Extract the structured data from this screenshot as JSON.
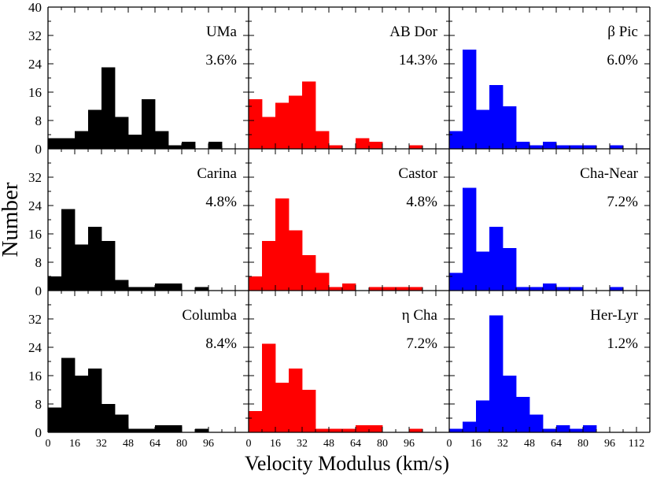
{
  "chart_data": {
    "type": "bar",
    "layout": "3x3 grid of histograms",
    "xlabel": "Velocity Modulus (km/s)",
    "ylabel": "Number",
    "bin_width": 8,
    "xlim": [
      0,
      120
    ],
    "ylim": [
      0,
      40
    ],
    "x_ticks": [
      0,
      16,
      32,
      48,
      64,
      80,
      96,
      112
    ],
    "x_tick_labels_first_col": [
      "0",
      "16",
      "32",
      "48",
      "64",
      "80",
      "96"
    ],
    "x_tick_labels_other_col": [
      "0",
      "16",
      "32",
      "48",
      "64",
      "80",
      "96"
    ],
    "x_tick_labels_last_col": [
      "0",
      "16",
      "32",
      "48",
      "64",
      "80",
      "96",
      "112"
    ],
    "y_tick_labels_top": [
      "0",
      "8",
      "16",
      "24",
      "32",
      "40"
    ],
    "y_tick_labels_other": [
      "0",
      "8",
      "16",
      "24",
      "32"
    ],
    "colors": {
      "black": "#000000",
      "red": "#ff0000",
      "blue": "#0000ff"
    },
    "panels": [
      {
        "name": "UMa",
        "percent": "3.6%",
        "color": "#000000",
        "values": [
          3,
          3,
          5,
          11,
          23,
          9,
          4,
          14,
          5,
          1,
          2,
          0,
          2,
          0,
          0
        ]
      },
      {
        "name": "AB Dor",
        "percent": "14.3%",
        "color": "#ff0000",
        "values": [
          14,
          9,
          13,
          15,
          19,
          5,
          1,
          0,
          3,
          2,
          0,
          0,
          1,
          0,
          0
        ]
      },
      {
        "name": "β Pic",
        "percent": "6.0%",
        "color": "#0000ff",
        "values": [
          5,
          28,
          11,
          18,
          12,
          2,
          1,
          2,
          1,
          1,
          1,
          0,
          1,
          0,
          0
        ]
      },
      {
        "name": "Carina",
        "percent": "4.8%",
        "color": "#000000",
        "values": [
          4,
          23,
          13,
          18,
          14,
          3,
          1,
          1,
          2,
          2,
          0,
          1,
          0,
          0,
          0
        ]
      },
      {
        "name": "Castor",
        "percent": "4.8%",
        "color": "#ff0000",
        "values": [
          4,
          14,
          26,
          17,
          10,
          5,
          1,
          2,
          0,
          1,
          1,
          1,
          1,
          0,
          0
        ]
      },
      {
        "name": "Cha-Near",
        "percent": "7.2%",
        "color": "#0000ff",
        "values": [
          5,
          29,
          11,
          18,
          12,
          1,
          1,
          2,
          1,
          1,
          0,
          0,
          1,
          0,
          0
        ]
      },
      {
        "name": "Columba",
        "percent": "8.4%",
        "color": "#000000",
        "values": [
          7,
          21,
          16,
          18,
          8,
          5,
          1,
          1,
          2,
          2,
          0,
          1,
          0,
          0,
          0
        ]
      },
      {
        "name": "η Cha",
        "percent": "7.2%",
        "color": "#ff0000",
        "values": [
          6,
          25,
          14,
          18,
          12,
          1,
          1,
          1,
          2,
          2,
          0,
          0,
          1,
          0,
          0
        ]
      },
      {
        "name": "Her-Lyr",
        "percent": "1.2%",
        "color": "#0000ff",
        "values": [
          1,
          3,
          9,
          33,
          16,
          10,
          5,
          1,
          2,
          1,
          2,
          0,
          0,
          0,
          0
        ]
      }
    ]
  }
}
